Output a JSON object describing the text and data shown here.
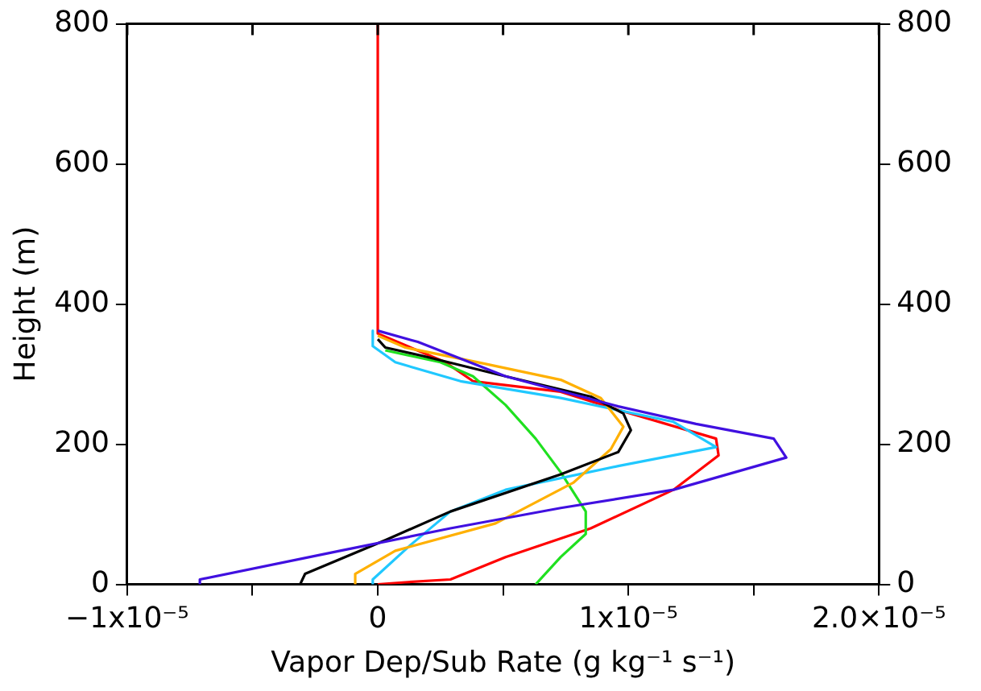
{
  "chart_data": {
    "type": "line",
    "xlabel": "Vapor Dep/Sub Rate (g kg⁻¹ s⁻¹)",
    "ylabel": "Height (m)",
    "xlim": [
      -1e-05,
      2e-05
    ],
    "xticks": [
      {
        "value": -1e-05,
        "label": "−1x10⁻⁵"
      },
      {
        "value": -5e-06,
        "label": null
      },
      {
        "value": 0,
        "label": "0"
      },
      {
        "value": 5e-06,
        "label": null
      },
      {
        "value": 1e-05,
        "label": "1x10⁻⁵"
      },
      {
        "value": 1.5e-05,
        "label": null
      },
      {
        "value": 2e-05,
        "label": "2.0×10⁻⁵"
      }
    ],
    "ylim": [
      0,
      800
    ],
    "yticks": [
      0,
      200,
      400,
      600,
      800
    ],
    "y2lim": [
      0,
      800
    ],
    "y2ticks": [
      0,
      200,
      400,
      600,
      800
    ],
    "grid": false,
    "legend": false,
    "marker": "none",
    "line_style": "solid",
    "series": [
      {
        "color": "#4010e0",
        "x": [
          0,
          1.6e-06,
          5.1e-06,
          9.6e-06,
          1.27e-05,
          1.58e-05,
          1.63e-05,
          1.18e-05,
          7.3e-06,
          2.9e-06,
          -1.5e-06,
          -7.1e-06,
          -7.1e-06
        ],
        "values": [
          362,
          346,
          297,
          254,
          229,
          208,
          181,
          135,
          109,
          80,
          48,
          7,
          0
        ]
      },
      {
        "color": "#000000",
        "x": [
          0,
          3e-07,
          1.8e-06,
          5.1e-06,
          8.5e-06,
          9.8e-06,
          1.01e-05,
          9.6e-06,
          7.3e-06,
          2.9e-06,
          3e-07,
          -2.9e-06,
          -3.1e-06
        ],
        "values": [
          350,
          338,
          326,
          297,
          268,
          244,
          220,
          189,
          157,
          104,
          63,
          15,
          0
        ]
      },
      {
        "color": "#ffb000",
        "x": [
          0,
          1.1e-06,
          4e-06,
          7.3e-06,
          8.9e-06,
          9.8e-06,
          9.3e-06,
          7.8e-06,
          4.7e-06,
          7e-07,
          -9e-07,
          -9e-07
        ],
        "values": [
          355,
          338,
          317,
          292,
          266,
          225,
          193,
          145,
          87,
          48,
          15,
          0
        ]
      },
      {
        "color": "#20c8ff",
        "x": [
          -2e-07,
          -2e-07,
          7e-07,
          3.3e-06,
          7.3e-06,
          1.18e-05,
          1.35e-05,
          9.6e-06,
          5.1e-06,
          2.9e-06,
          1.3e-06,
          -2e-07,
          -2e-07
        ],
        "values": [
          362,
          340,
          317,
          290,
          266,
          232,
          196,
          169,
          135,
          104,
          56,
          7,
          0
        ]
      },
      {
        "color": "#20e020",
        "x": [
          3e-07,
          2.5e-06,
          3.8e-06,
          5.1e-06,
          6.3e-06,
          7.3e-06,
          8.3e-06,
          8.3e-06,
          7.3e-06,
          6.3e-06
        ],
        "values": [
          334,
          317,
          297,
          256,
          208,
          160,
          104,
          72,
          39,
          0
        ]
      },
      {
        "color": "#ff0000",
        "x": [
          0,
          0,
          2.7e-06,
          3.8e-06,
          7.3e-06,
          9.6e-06,
          1.35e-05,
          1.36e-05,
          1.18e-05,
          8.5e-06,
          5.1e-06,
          2.9e-06,
          1.1e-06,
          0
        ],
        "values": [
          800,
          358,
          317,
          290,
          275,
          249,
          208,
          184,
          135,
          80,
          39,
          7,
          3,
          0
        ]
      }
    ]
  }
}
